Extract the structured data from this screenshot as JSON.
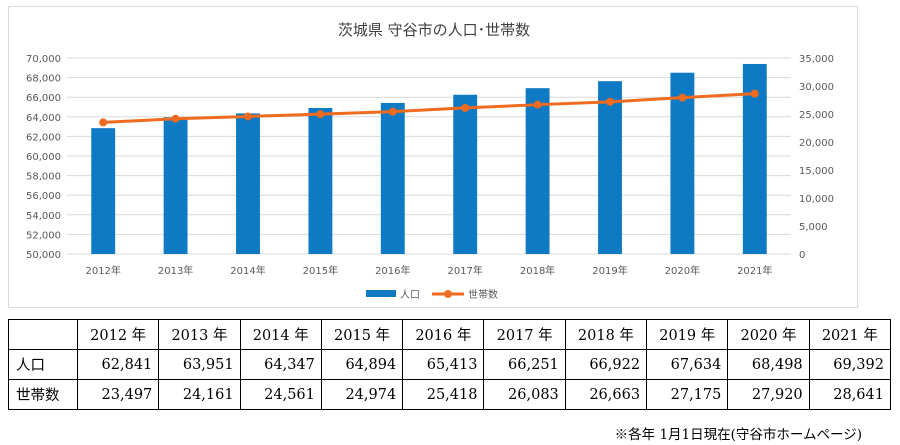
{
  "chart_data": {
    "type": "bar+line",
    "title": "茨城県 守谷市の人口･世帯数",
    "categories": [
      "2012年",
      "2013年",
      "2014年",
      "2015年",
      "2016年",
      "2017年",
      "2018年",
      "2019年",
      "2020年",
      "2021年"
    ],
    "series": [
      {
        "name": "人口",
        "kind": "bar",
        "axis": "left",
        "color": "#0f7ac4",
        "values": [
          62841,
          63951,
          64347,
          64894,
          65413,
          66251,
          66922,
          67634,
          68498,
          69392
        ]
      },
      {
        "name": "世帯数",
        "kind": "line",
        "axis": "right",
        "color": "#ee6b1f",
        "values": [
          23497,
          24161,
          24561,
          24974,
          25418,
          26083,
          26663,
          27175,
          27920,
          28641
        ]
      }
    ],
    "y_left": {
      "min": 50000,
      "max": 70000,
      "step": 2000,
      "ticks": [
        "50,000",
        "52,000",
        "54,000",
        "56,000",
        "58,000",
        "60,000",
        "62,000",
        "64,000",
        "66,000",
        "68,000",
        "70,000"
      ]
    },
    "y_right": {
      "min": 0,
      "max": 35000,
      "step": 5000,
      "ticks": [
        "0",
        "5,000",
        "10,000",
        "15,000",
        "20,000",
        "25,000",
        "30,000",
        "35,000"
      ]
    },
    "gridlines": true,
    "legend_position": "bottom"
  },
  "table": {
    "header_blank": "",
    "headers": [
      "2012 年",
      "2013 年",
      "2014 年",
      "2015 年",
      "2016 年",
      "2017 年",
      "2018 年",
      "2019 年",
      "2020 年",
      "2021 年"
    ],
    "rows": [
      {
        "label": "人口",
        "values": [
          "62,841",
          "63,951",
          "64,347",
          "64,894",
          "65,413",
          "66,251",
          "66,922",
          "67,634",
          "68,498",
          "69,392"
        ]
      },
      {
        "label": "世帯数",
        "values": [
          "23,497",
          "24,161",
          "24,561",
          "24,974",
          "25,418",
          "26,083",
          "26,663",
          "27,175",
          "27,920",
          "28,641"
        ]
      }
    ]
  },
  "footnote": "※各年 1月1日現在(守谷市ホームページ)"
}
